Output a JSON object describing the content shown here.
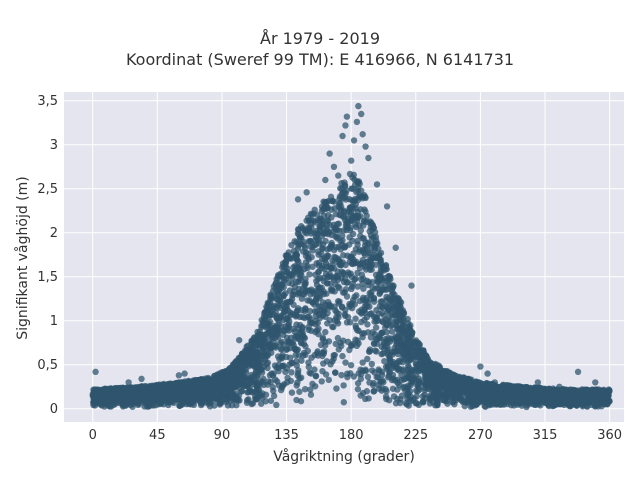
{
  "chart_data": {
    "type": "scatter",
    "title_line1": "År 1979 - 2019",
    "title_line2": "Koordinat (Sweref 99 TM): E 416966, N 6141731",
    "xlabel": "Vågriktning (grader)",
    "ylabel": "Signifikant våghöjd (m)",
    "xlim": [
      -20,
      370
    ],
    "ylim": [
      -0.15,
      3.6
    ],
    "xticks": [
      0,
      45,
      90,
      135,
      180,
      225,
      270,
      315,
      360
    ],
    "xtick_labels": [
      "0",
      "45",
      "90",
      "135",
      "180",
      "225",
      "270",
      "315",
      "360"
    ],
    "yticks": [
      0,
      0.5,
      1,
      1.5,
      2,
      2.5,
      3,
      3.5
    ],
    "ytick_labels": [
      "0",
      "0,5",
      "1",
      "1,5",
      "2",
      "2,5",
      "3",
      "3,5"
    ],
    "grid": true,
    "marker_color": "#2f566d",
    "envelope": {
      "x": [
        0,
        30,
        60,
        80,
        95,
        105,
        115,
        125,
        135,
        145,
        155,
        165,
        175,
        180,
        185,
        190,
        195,
        205,
        215,
        225,
        235,
        250,
        270,
        300,
        330,
        360
      ],
      "y_max": [
        0.22,
        0.25,
        0.3,
        0.35,
        0.45,
        0.65,
        0.9,
        1.35,
        1.8,
        2.1,
        2.3,
        2.4,
        2.6,
        2.7,
        2.6,
        2.4,
        2.1,
        1.6,
        1.2,
        0.8,
        0.55,
        0.4,
        0.3,
        0.25,
        0.22,
        0.22
      ]
    },
    "outliers": [
      {
        "x": 2,
        "y": 0.42
      },
      {
        "x": 25,
        "y": 0.3
      },
      {
        "x": 34,
        "y": 0.34
      },
      {
        "x": 60,
        "y": 0.38
      },
      {
        "x": 64,
        "y": 0.4
      },
      {
        "x": 102,
        "y": 0.78
      },
      {
        "x": 143,
        "y": 2.38
      },
      {
        "x": 149,
        "y": 2.46
      },
      {
        "x": 162,
        "y": 2.6
      },
      {
        "x": 165,
        "y": 2.9
      },
      {
        "x": 168,
        "y": 2.75
      },
      {
        "x": 171,
        "y": 2.65
      },
      {
        "x": 174,
        "y": 3.1
      },
      {
        "x": 176,
        "y": 3.22
      },
      {
        "x": 177,
        "y": 3.32
      },
      {
        "x": 180,
        "y": 2.82
      },
      {
        "x": 182,
        "y": 3.05
      },
      {
        "x": 184,
        "y": 3.26
      },
      {
        "x": 185,
        "y": 3.44
      },
      {
        "x": 187,
        "y": 3.35
      },
      {
        "x": 188,
        "y": 3.12
      },
      {
        "x": 190,
        "y": 2.98
      },
      {
        "x": 192,
        "y": 2.85
      },
      {
        "x": 198,
        "y": 2.55
      },
      {
        "x": 205,
        "y": 2.3
      },
      {
        "x": 211,
        "y": 1.83
      },
      {
        "x": 222,
        "y": 1.4
      },
      {
        "x": 270,
        "y": 0.48
      },
      {
        "x": 275,
        "y": 0.4
      },
      {
        "x": 280,
        "y": 0.3
      },
      {
        "x": 310,
        "y": 0.3
      },
      {
        "x": 325,
        "y": 0.25
      },
      {
        "x": 338,
        "y": 0.42
      },
      {
        "x": 350,
        "y": 0.3
      }
    ]
  }
}
